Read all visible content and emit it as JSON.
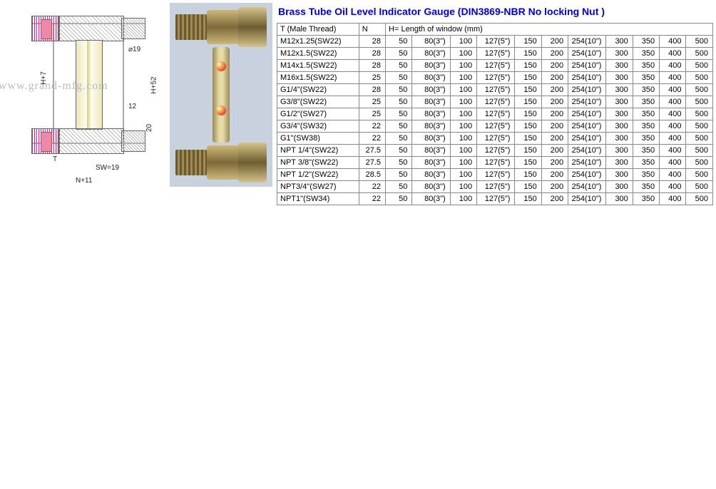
{
  "title": "Brass Tube Oil Level Indicator Gauge (DIN3869-NBR  No locking Nut )",
  "watermark": "www.grand-mfg.com",
  "dims": {
    "d19": "⌀19",
    "d12": "12",
    "sw19": "SW=19",
    "n11": "N+11",
    "t": "T",
    "h7": "H+7",
    "h52": "H+52",
    "g20": "20"
  },
  "header": {
    "thread": "T (Male Thread)",
    "n": "N",
    "h": "H= Length of window (mm)"
  },
  "columns_after_n": [
    "c1",
    "c2",
    "c3",
    "c4",
    "c5",
    "c6",
    "c7",
    "c8",
    "c9",
    "c10",
    "c11"
  ],
  "rows": [
    {
      "thread": "M12x1.25(SW22)",
      "n": "28",
      "vals": [
        "50",
        "80(3\")",
        "100",
        "127(5\")",
        "150",
        "200",
        "254(10\")",
        "300",
        "350",
        "400",
        "500"
      ]
    },
    {
      "thread": "M12x1.5(SW22)",
      "n": "28",
      "vals": [
        "50",
        "80(3\")",
        "100",
        "127(5\")",
        "150",
        "200",
        "254(10\")",
        "300",
        "350",
        "400",
        "500"
      ]
    },
    {
      "thread": "M14x1.5(SW22)",
      "n": "28",
      "vals": [
        "50",
        "80(3\")",
        "100",
        "127(5\")",
        "150",
        "200",
        "254(10\")",
        "300",
        "350",
        "400",
        "500"
      ]
    },
    {
      "thread": "M16x1.5(SW22)",
      "n": "25",
      "vals": [
        "50",
        "80(3\")",
        "100",
        "127(5\")",
        "150",
        "200",
        "254(10\")",
        "300",
        "350",
        "400",
        "500"
      ]
    },
    {
      "thread": "G1/4\"(SW22)",
      "n": "28",
      "vals": [
        "50",
        "80(3\")",
        "100",
        "127(5\")",
        "150",
        "200",
        "254(10\")",
        "300",
        "350",
        "400",
        "500"
      ]
    },
    {
      "thread": "G3/8\"(SW22)",
      "n": "25",
      "vals": [
        "50",
        "80(3\")",
        "100",
        "127(5\")",
        "150",
        "200",
        "254(10\")",
        "300",
        "350",
        "400",
        "500"
      ]
    },
    {
      "thread": "G1/2\"(SW27)",
      "n": "25",
      "vals": [
        "50",
        "80(3\")",
        "100",
        "127(5\")",
        "150",
        "200",
        "254(10\")",
        "300",
        "350",
        "400",
        "500"
      ]
    },
    {
      "thread": "G3/4\"(SW32)",
      "n": "22",
      "vals": [
        "50",
        "80(3\")",
        "100",
        "127(5\")",
        "150",
        "200",
        "254(10\")",
        "300",
        "350",
        "400",
        "500"
      ]
    },
    {
      "thread": "G1\"(SW38)",
      "n": "22",
      "vals": [
        "50",
        "80(3\")",
        "100",
        "127(5\")",
        "150",
        "200",
        "254(10\")",
        "300",
        "350",
        "400",
        "500"
      ]
    },
    {
      "thread": "NPT 1/4\"(SW22)",
      "n": "27.5",
      "vals": [
        "50",
        "80(3\")",
        "100",
        "127(5\")",
        "150",
        "200",
        "254(10\")",
        "300",
        "350",
        "400",
        "500"
      ]
    },
    {
      "thread": "NPT 3/8\"(SW22)",
      "n": "27.5",
      "vals": [
        "50",
        "80(3\")",
        "100",
        "127(5\")",
        "150",
        "200",
        "254(10\")",
        "300",
        "350",
        "400",
        "500"
      ]
    },
    {
      "thread": "NPT 1/2\"(SW22)",
      "n": "28.5",
      "vals": [
        "50",
        "80(3\")",
        "100",
        "127(5\")",
        "150",
        "200",
        "254(10\")",
        "300",
        "350",
        "400",
        "500"
      ]
    },
    {
      "thread": "NPT3/4\"(SW27)",
      "n": "22",
      "vals": [
        "50",
        "80(3\")",
        "100",
        "127(5\")",
        "150",
        "200",
        "254(10\")",
        "300",
        "350",
        "400",
        "500"
      ]
    },
    {
      "thread": "NPT1\"(SW34)",
      "n": "22",
      "vals": [
        "50",
        "80(3\")",
        "100",
        "127(5\")",
        "150",
        "200",
        "254(10\")",
        "300",
        "350",
        "400",
        "500"
      ]
    }
  ],
  "table_style": {
    "border_color": "#888888",
    "font_size": 11,
    "title_color": "#0000dd",
    "col_widths": {
      "thread": 86,
      "n": 28,
      "default": 28,
      "wide": 40
    }
  }
}
